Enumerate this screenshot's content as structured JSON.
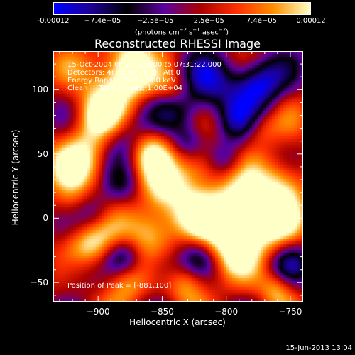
{
  "colorbar": {
    "ticks": [
      "-0.00012",
      "−7.4e−05",
      "−2.5e−05",
      "2.5e−05",
      "7.4e−05",
      "0.00012"
    ],
    "tick_values": [
      -0.00012,
      -7.4e-05,
      -2.5e-05,
      2.5e-05,
      7.4e-05,
      0.00012
    ],
    "range": [
      -0.00012,
      0.00012
    ],
    "units_prefix": "(photons cm",
    "units_exp1": "−2",
    "units_mid": " s",
    "units_exp2": "−1",
    "units_mid2": " asec",
    "units_exp3": "−2",
    "units_suffix": ")",
    "colors": [
      "#0000ff",
      "#1e0096",
      "#000000",
      "#5a00a0",
      "#aa0000",
      "#ff3000",
      "#ff9000",
      "#ffffc8"
    ]
  },
  "chart_data": {
    "type": "heatmap",
    "title": "Reconstructed RHESSI Image",
    "xlabel": "Heliocentric X (arcsec)",
    "ylabel": "Heliocentric Y (arcsec)",
    "xlim": [
      -935,
      -740
    ],
    "ylim": [
      -65,
      130
    ],
    "xticks": [
      -900,
      -850,
      -800,
      -750
    ],
    "xtick_labels": [
      "−900",
      "−850",
      "−800",
      "−750"
    ],
    "yticks": [
      -50,
      0,
      50,
      100
    ],
    "ytick_labels": [
      "−50",
      "0",
      "50",
      "100"
    ],
    "annotations": [
      "15-Oct-2004 07:25:22.000 to 07:31:22.000",
      "Detectors: 4F 5F 6F 7F 8F, Att 0",
      "Energy Range: 25.0 - 50.0 keV",
      "Clean     Total Counts: 1.00E+04"
    ],
    "peak_label": "Position of Peak = [-881,100]",
    "peak": [
      -881,
      100
    ]
  },
  "timestamp": "15-Jun-2013 13:04"
}
